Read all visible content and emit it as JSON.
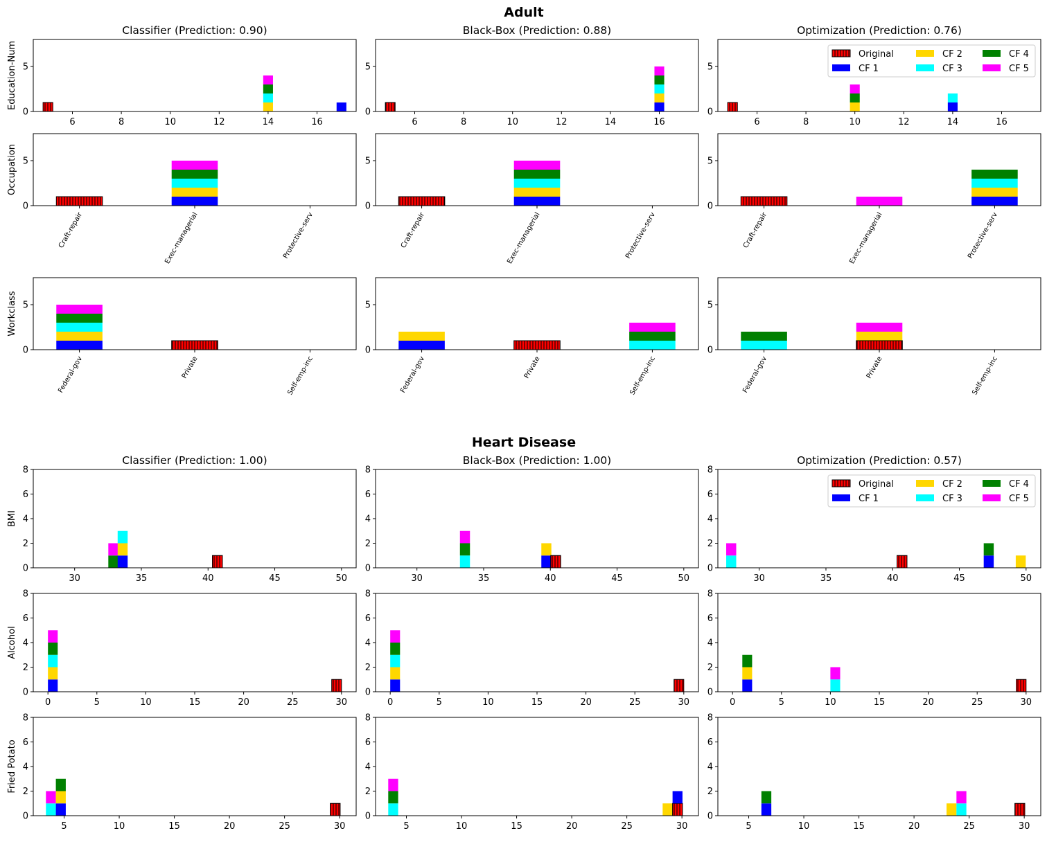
{
  "figure": {
    "groups": [
      {
        "title": "Adult"
      },
      {
        "title": "Heart Disease"
      }
    ],
    "legend": {
      "entries": [
        {
          "label": "Original",
          "color": "#ff0000",
          "hatch": true
        },
        {
          "label": "CF 1",
          "color": "#0000ff"
        },
        {
          "label": "CF 2",
          "color": "#ffd700"
        },
        {
          "label": "CF 3",
          "color": "#00ffff"
        },
        {
          "label": "CF 4",
          "color": "#008000"
        },
        {
          "label": "CF 5",
          "color": "#ff00ff"
        }
      ]
    }
  },
  "chart_data": [
    {
      "type": "bar",
      "group": 0,
      "row": 0,
      "col": 0,
      "title": "Classifier (Prediction: 0.90)",
      "ylabel": "Education-Num",
      "xlim": [
        4.4,
        17.6
      ],
      "ylim": [
        0,
        8
      ],
      "xticks": [
        6,
        8,
        10,
        12,
        14,
        16
      ],
      "yticks": [
        0,
        5
      ],
      "bar_width": 0.4,
      "bars": [
        {
          "x": 5,
          "original": 1
        },
        {
          "x": 14,
          "stack": [
            0,
            1,
            1,
            1,
            1
          ]
        },
        {
          "x": 17,
          "stack": [
            1,
            0,
            0,
            0,
            0
          ]
        }
      ],
      "legend": false
    },
    {
      "type": "bar",
      "group": 0,
      "row": 0,
      "col": 1,
      "title": "Black-Box (Prediction: 0.88)",
      "ylabel": "",
      "xlim": [
        4.4,
        17.6
      ],
      "ylim": [
        0,
        8
      ],
      "xticks": [
        6,
        8,
        10,
        12,
        14,
        16
      ],
      "yticks": [
        0,
        5
      ],
      "bar_width": 0.4,
      "bars": [
        {
          "x": 5,
          "original": 1
        },
        {
          "x": 16,
          "stack": [
            1,
            1,
            1,
            1,
            1
          ]
        }
      ],
      "legend": false
    },
    {
      "type": "bar",
      "group": 0,
      "row": 0,
      "col": 2,
      "title": "Optimization (Prediction: 0.76)",
      "ylabel": "",
      "xlim": [
        4.4,
        17.6
      ],
      "ylim": [
        0,
        8
      ],
      "xticks": [
        6,
        8,
        10,
        12,
        14,
        16
      ],
      "yticks": [
        0,
        5
      ],
      "bar_width": 0.4,
      "bars": [
        {
          "x": 5,
          "original": 1
        },
        {
          "x": 10,
          "stack": [
            0,
            1,
            0,
            1,
            1
          ]
        },
        {
          "x": 14,
          "stack": [
            1,
            0,
            1,
            0,
            0
          ]
        }
      ],
      "legend": true
    },
    {
      "type": "bar",
      "group": 0,
      "row": 1,
      "col": 0,
      "title": "",
      "ylabel": "Occupation",
      "categorical": true,
      "categories": [
        "Craft-repair",
        "Exec-managerial",
        "Protective-serv"
      ],
      "ylim": [
        0,
        8
      ],
      "yticks": [
        0,
        5
      ],
      "bars": [
        {
          "x": 0,
          "original": 1
        },
        {
          "x": 1,
          "stack": [
            1,
            1,
            1,
            1,
            1
          ]
        }
      ]
    },
    {
      "type": "bar",
      "group": 0,
      "row": 1,
      "col": 1,
      "title": "",
      "ylabel": "",
      "categorical": true,
      "categories": [
        "Craft-repair",
        "Exec-managerial",
        "Protective-serv"
      ],
      "ylim": [
        0,
        8
      ],
      "yticks": [
        0,
        5
      ],
      "bars": [
        {
          "x": 0,
          "original": 1
        },
        {
          "x": 1,
          "stack": [
            1,
            1,
            1,
            1,
            1
          ]
        }
      ]
    },
    {
      "type": "bar",
      "group": 0,
      "row": 1,
      "col": 2,
      "title": "",
      "ylabel": "",
      "categorical": true,
      "categories": [
        "Craft-repair",
        "Exec-managerial",
        "Protective-serv"
      ],
      "ylim": [
        0,
        8
      ],
      "yticks": [
        0,
        5
      ],
      "bars": [
        {
          "x": 0,
          "original": 1
        },
        {
          "x": 1,
          "stack": [
            0,
            0,
            0,
            0,
            1
          ]
        },
        {
          "x": 2,
          "stack": [
            1,
            1,
            1,
            1,
            0
          ]
        }
      ]
    },
    {
      "type": "bar",
      "group": 0,
      "row": 2,
      "col": 0,
      "title": "",
      "ylabel": "Workclass",
      "categorical": true,
      "categories": [
        "Federal-gov",
        "Private",
        "Self-emp-inc"
      ],
      "ylim": [
        0,
        8
      ],
      "yticks": [
        0,
        5
      ],
      "bars": [
        {
          "x": 0,
          "stack": [
            1,
            1,
            1,
            1,
            1
          ]
        },
        {
          "x": 1,
          "original": 1
        }
      ]
    },
    {
      "type": "bar",
      "group": 0,
      "row": 2,
      "col": 1,
      "title": "",
      "ylabel": "",
      "categorical": true,
      "categories": [
        "Federal-gov",
        "Private",
        "Self-emp-inc"
      ],
      "ylim": [
        0,
        8
      ],
      "yticks": [
        0,
        5
      ],
      "bars": [
        {
          "x": 0,
          "stack": [
            1,
            1,
            0,
            0,
            0
          ]
        },
        {
          "x": 1,
          "original": 1
        },
        {
          "x": 2,
          "stack": [
            0,
            0,
            1,
            1,
            1
          ]
        }
      ]
    },
    {
      "type": "bar",
      "group": 0,
      "row": 2,
      "col": 2,
      "title": "",
      "ylabel": "",
      "categorical": true,
      "categories": [
        "Federal-gov",
        "Private",
        "Self-emp-inc"
      ],
      "ylim": [
        0,
        8
      ],
      "yticks": [
        0,
        5
      ],
      "bars": [
        {
          "x": 0,
          "stack": [
            0,
            0,
            1,
            1,
            0
          ]
        },
        {
          "x": 1,
          "original": 1,
          "stack": [
            1,
            1,
            0,
            0,
            1
          ]
        }
      ]
    },
    {
      "type": "bar",
      "group": 1,
      "row": 0,
      "col": 0,
      "title": "Classifier (Prediction: 1.00)",
      "ylabel": "BMI",
      "xlim": [
        26.9,
        51.1
      ],
      "ylim": [
        0,
        8
      ],
      "xticks": [
        30,
        35,
        40,
        45,
        50
      ],
      "yticks": [
        0,
        2,
        4,
        6,
        8
      ],
      "bar_width": 0.75,
      "bars": [
        {
          "x": 32.9,
          "stack": [
            0,
            0,
            0,
            1,
            1
          ]
        },
        {
          "x": 33.6,
          "stack": [
            1,
            1,
            1,
            0,
            0
          ]
        },
        {
          "x": 40.7,
          "original": 1
        }
      ],
      "legend": false
    },
    {
      "type": "bar",
      "group": 1,
      "row": 0,
      "col": 1,
      "title": "Black-Box (Prediction: 1.00)",
      "ylabel": "",
      "xlim": [
        26.9,
        51.1
      ],
      "ylim": [
        0,
        8
      ],
      "xticks": [
        30,
        35,
        40,
        45,
        50
      ],
      "yticks": [
        0,
        2,
        4,
        6,
        8
      ],
      "bar_width": 0.75,
      "bars": [
        {
          "x": 33.6,
          "stack": [
            0,
            0,
            1,
            1,
            1
          ]
        },
        {
          "x": 39.7,
          "stack": [
            1,
            1,
            0,
            0,
            0
          ]
        },
        {
          "x": 40.4,
          "original": 1
        }
      ],
      "legend": false
    },
    {
      "type": "bar",
      "group": 1,
      "row": 0,
      "col": 2,
      "title": "Optimization (Prediction: 0.57)",
      "ylabel": "",
      "xlim": [
        26.9,
        51.1
      ],
      "ylim": [
        0,
        8
      ],
      "xticks": [
        30,
        35,
        40,
        45,
        50
      ],
      "yticks": [
        0,
        2,
        4,
        6,
        8
      ],
      "bar_width": 0.75,
      "bars": [
        {
          "x": 27.9,
          "stack": [
            0,
            0,
            1,
            0,
            1
          ]
        },
        {
          "x": 40.7,
          "original": 1
        },
        {
          "x": 47.2,
          "stack": [
            1,
            0,
            0,
            1,
            0
          ]
        },
        {
          "x": 49.6,
          "stack": [
            0,
            1,
            0,
            0,
            0
          ]
        }
      ],
      "legend": true
    },
    {
      "type": "bar",
      "group": 1,
      "row": 1,
      "col": 0,
      "title": "",
      "ylabel": "Alcohol",
      "xlim": [
        -1.5,
        31.5
      ],
      "ylim": [
        0,
        8
      ],
      "xticks": [
        0,
        5,
        10,
        15,
        20,
        25,
        30
      ],
      "yticks": [
        0,
        2,
        4,
        6,
        8
      ],
      "bar_width": 1.0,
      "bars": [
        {
          "x": 0.5,
          "stack": [
            1,
            1,
            1,
            1,
            1
          ]
        },
        {
          "x": 29.5,
          "original": 1
        }
      ]
    },
    {
      "type": "bar",
      "group": 1,
      "row": 1,
      "col": 1,
      "title": "",
      "ylabel": "",
      "xlim": [
        -1.5,
        31.5
      ],
      "ylim": [
        0,
        8
      ],
      "xticks": [
        0,
        5,
        10,
        15,
        20,
        25,
        30
      ],
      "yticks": [
        0,
        2,
        4,
        6,
        8
      ],
      "bar_width": 1.0,
      "bars": [
        {
          "x": 0.5,
          "stack": [
            1,
            1,
            1,
            1,
            1
          ]
        },
        {
          "x": 29.5,
          "original": 1
        }
      ]
    },
    {
      "type": "bar",
      "group": 1,
      "row": 1,
      "col": 2,
      "title": "",
      "ylabel": "",
      "xlim": [
        -1.5,
        31.5
      ],
      "ylim": [
        0,
        8
      ],
      "xticks": [
        0,
        5,
        10,
        15,
        20,
        25,
        30
      ],
      "yticks": [
        0,
        2,
        4,
        6,
        8
      ],
      "bar_width": 1.0,
      "bars": [
        {
          "x": 1.5,
          "stack": [
            1,
            1,
            0,
            1,
            0
          ]
        },
        {
          "x": 10.5,
          "stack": [
            0,
            0,
            1,
            0,
            1
          ]
        },
        {
          "x": 29.5,
          "original": 1
        }
      ]
    },
    {
      "type": "bar",
      "group": 1,
      "row": 2,
      "col": 0,
      "title": "",
      "ylabel": "Fried Potato",
      "xlim": [
        2.2,
        31.5
      ],
      "ylim": [
        0,
        8
      ],
      "xticks": [
        5,
        10,
        15,
        20,
        25,
        30
      ],
      "yticks": [
        0,
        2,
        4,
        6,
        8
      ],
      "bar_width": 0.9,
      "bars": [
        {
          "x": 3.8,
          "stack": [
            0,
            0,
            1,
            0,
            1
          ]
        },
        {
          "x": 4.7,
          "stack": [
            1,
            1,
            0,
            1,
            0
          ]
        },
        {
          "x": 29.6,
          "original": 1
        }
      ]
    },
    {
      "type": "bar",
      "group": 1,
      "row": 2,
      "col": 1,
      "title": "",
      "ylabel": "",
      "xlim": [
        2.2,
        31.5
      ],
      "ylim": [
        0,
        8
      ],
      "xticks": [
        5,
        10,
        15,
        20,
        25,
        30
      ],
      "yticks": [
        0,
        2,
        4,
        6,
        8
      ],
      "bar_width": 0.9,
      "bars": [
        {
          "x": 3.8,
          "stack": [
            0,
            0,
            1,
            1,
            1
          ]
        },
        {
          "x": 28.7,
          "stack": [
            0,
            1,
            0,
            0,
            0
          ]
        },
        {
          "x": 29.6,
          "original": 1,
          "stack_over": [
            1
          ]
        },
        {
          "x": 29.6,
          "stack": [
            1,
            0,
            0,
            0,
            0
          ],
          "offset": 1
        }
      ]
    },
    {
      "type": "bar",
      "group": 1,
      "row": 2,
      "col": 2,
      "title": "",
      "ylabel": "",
      "xlim": [
        2.2,
        31.5
      ],
      "ylim": [
        0,
        8
      ],
      "xticks": [
        5,
        10,
        15,
        20,
        25,
        30
      ],
      "yticks": [
        0,
        2,
        4,
        6,
        8
      ],
      "bar_width": 0.9,
      "bars": [
        {
          "x": 6.6,
          "stack": [
            1,
            0,
            0,
            1,
            0
          ]
        },
        {
          "x": 23.4,
          "stack": [
            0,
            1,
            0,
            0,
            0
          ]
        },
        {
          "x": 24.3,
          "stack": [
            0,
            0,
            1,
            0,
            1
          ]
        },
        {
          "x": 29.6,
          "original": 1
        }
      ]
    }
  ]
}
